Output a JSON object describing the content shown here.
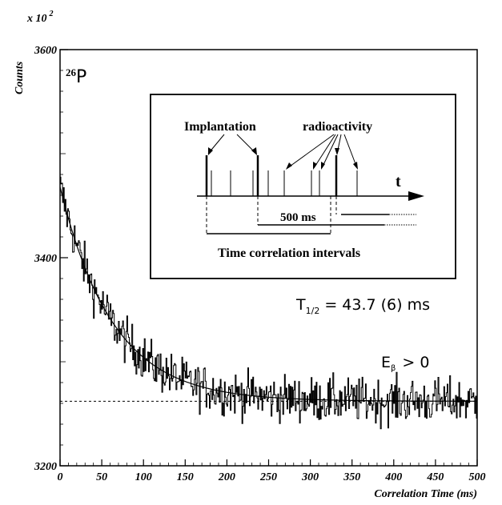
{
  "chart_data": {
    "type": "line",
    "x_label": "Correlation Time (ms)",
    "y_label": "Counts",
    "y_multiplier": "x 10",
    "y_multiplier_exp": "2",
    "xlim": [
      0,
      500
    ],
    "ylim": [
      3200,
      3600
    ],
    "x_ticks": [
      0,
      50,
      100,
      150,
      200,
      250,
      300,
      350,
      400,
      450,
      500
    ],
    "y_ticks": [
      3200,
      3400,
      3600
    ],
    "background_level": 3262,
    "fit": {
      "amplitude": 206,
      "half_life_ms": 43.7
    },
    "decay_samples": {
      "x": [
        0,
        25,
        50,
        75,
        100,
        150,
        200,
        250,
        300,
        400,
        500
      ],
      "y": [
        3462,
        3415,
        3363,
        3335,
        3310,
        3283,
        3270,
        3265,
        3264,
        3262,
        3262
      ]
    },
    "nucleus_mass": "26",
    "nucleus_symbol": "P",
    "half_life_text": "T",
    "half_life_sub": "1/2",
    "half_life_value": "= 43.7 (6) ms",
    "condition_text": "E",
    "condition_sub": "β",
    "condition_value": "> 0"
  },
  "inset": {
    "label_implantation": "Implantation",
    "label_radioactivity": "radioactivity",
    "label_t": "t",
    "label_window": "500 ms",
    "label_intervals": "Time correlation intervals"
  }
}
